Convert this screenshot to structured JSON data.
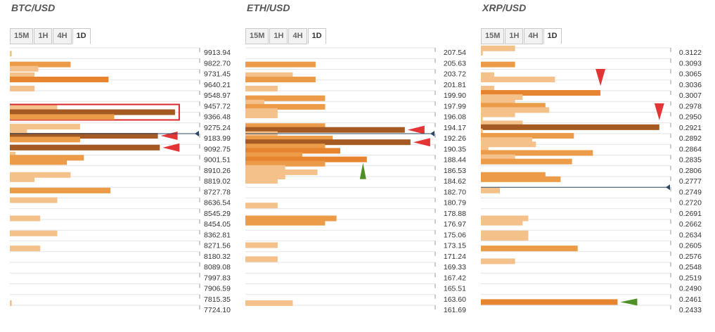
{
  "colors": {
    "light": "#f5c18a",
    "mid": "#ec9b48",
    "dark": "#e6842f",
    "strongest": "#a55a23",
    "grid": "#e3e3e3",
    "label": "#333333",
    "price_marker": "#2c4766",
    "arrow_red": "#e33535",
    "arrow_green": "#4e8f26",
    "highlight_box": "#d9272e"
  },
  "timeframes": [
    "15M",
    "1H",
    "4H",
    "1D"
  ],
  "active_timeframe": "1D",
  "chart_data": [
    {
      "type": "bar",
      "orientation": "horizontal",
      "title": "BTC/USD",
      "price_levels": [
        "9913.94",
        "9822.70",
        "9731.45",
        "9640.21",
        "9548.97",
        "9457.72",
        "9366.48",
        "9275.24",
        "9183.99",
        "9092.75",
        "9001.51",
        "8910.26",
        "8819.02",
        "8727.78",
        "8636.54",
        "8545.29",
        "8454.05",
        "8362.81",
        "8271.56",
        "8180.32",
        "8089.08",
        "7997.83",
        "7906.59",
        "7815.35",
        "7724.10"
      ],
      "current_price_position": 8.0,
      "max_value": 10,
      "bars": [
        {
          "y": 0.55,
          "value": 0.1,
          "tone": "light"
        },
        {
          "y": 1.55,
          "value": 3.2,
          "tone": "mid"
        },
        {
          "y": 1.95,
          "value": 1.5,
          "tone": "light"
        },
        {
          "y": 2.55,
          "value": 1.3,
          "tone": "light"
        },
        {
          "y": 2.95,
          "value": 5.2,
          "tone": "dark"
        },
        {
          "y": 3.8,
          "value": 1.3,
          "tone": "light"
        },
        {
          "y": 5.5,
          "value": 2.5,
          "tone": "light"
        },
        {
          "y": 6.0,
          "value": 8.7,
          "tone": "strongest",
          "highlight": true
        },
        {
          "y": 6.45,
          "value": 5.5,
          "tone": "mid"
        },
        {
          "y": 7.35,
          "value": 3.7,
          "tone": "light"
        },
        {
          "y": 7.75,
          "value": 0.9,
          "tone": "light"
        },
        {
          "y": 8.2,
          "value": 7.8,
          "tone": "strongest",
          "arrow": "red"
        },
        {
          "y": 8.55,
          "value": 3.7,
          "tone": "mid"
        },
        {
          "y": 9.3,
          "value": 7.9,
          "tone": "strongest",
          "arrow": "red"
        },
        {
          "y": 9.95,
          "value": 0.3,
          "tone": "light"
        },
        {
          "y": 10.25,
          "value": 3.9,
          "tone": "mid"
        },
        {
          "y": 10.65,
          "value": 3.0,
          "tone": "mid"
        },
        {
          "y": 11.85,
          "value": 3.2,
          "tone": "light"
        },
        {
          "y": 12.25,
          "value": 1.3,
          "tone": "light"
        },
        {
          "y": 13.3,
          "value": 5.3,
          "tone": "mid"
        },
        {
          "y": 14.2,
          "value": 2.5,
          "tone": "light"
        },
        {
          "y": 15.9,
          "value": 1.6,
          "tone": "light"
        },
        {
          "y": 17.3,
          "value": 2.5,
          "tone": "light"
        },
        {
          "y": 18.7,
          "value": 1.6,
          "tone": "light"
        },
        {
          "y": 23.8,
          "value": 0.1,
          "tone": "light"
        }
      ]
    },
    {
      "type": "bar",
      "orientation": "horizontal",
      "title": "ETH/USD",
      "price_levels": [
        "207.54",
        "205.63",
        "203.72",
        "201.81",
        "199.90",
        "197.99",
        "196.08",
        "194.17",
        "192.26",
        "190.35",
        "188.44",
        "186.53",
        "184.62",
        "182.70",
        "180.79",
        "178.88",
        "176.97",
        "175.06",
        "173.15",
        "171.24",
        "169.33",
        "167.42",
        "165.51",
        "163.60",
        "161.69"
      ],
      "current_price_position": 8.0,
      "max_value": 10,
      "bars": [
        {
          "y": 1.55,
          "value": 3.7,
          "tone": "mid"
        },
        {
          "y": 2.55,
          "value": 2.5,
          "tone": "light"
        },
        {
          "y": 2.95,
          "value": 3.7,
          "tone": "mid"
        },
        {
          "y": 3.8,
          "value": 1.7,
          "tone": "light"
        },
        {
          "y": 4.7,
          "value": 4.2,
          "tone": "mid"
        },
        {
          "y": 5.1,
          "value": 1.0,
          "tone": "light"
        },
        {
          "y": 5.5,
          "value": 4.2,
          "tone": "mid"
        },
        {
          "y": 5.9,
          "value": 1.7,
          "tone": "light"
        },
        {
          "y": 6.3,
          "value": 1.7,
          "tone": "light"
        },
        {
          "y": 7.3,
          "value": 4.2,
          "tone": "mid"
        },
        {
          "y": 7.65,
          "value": 8.4,
          "tone": "strongest",
          "arrow": "red"
        },
        {
          "y": 8.05,
          "value": 1.7,
          "tone": "light"
        },
        {
          "y": 8.45,
          "value": 4.6,
          "tone": "mid"
        },
        {
          "y": 8.8,
          "value": 8.7,
          "tone": "strongest",
          "arrow": "red"
        },
        {
          "y": 9.2,
          "value": 4.2,
          "tone": "mid"
        },
        {
          "y": 9.6,
          "value": 5.0,
          "tone": "dark"
        },
        {
          "y": 10.0,
          "value": 3.0,
          "tone": "mid"
        },
        {
          "y": 10.4,
          "value": 6.4,
          "tone": "dark",
          "arrow": "green"
        },
        {
          "y": 10.8,
          "value": 4.2,
          "tone": "mid"
        },
        {
          "y": 11.2,
          "value": 2.1,
          "tone": "light"
        },
        {
          "y": 11.6,
          "value": 3.8,
          "tone": "light"
        },
        {
          "y": 12.0,
          "value": 2.1,
          "tone": "light"
        },
        {
          "y": 12.4,
          "value": 1.7,
          "tone": "light"
        },
        {
          "y": 14.7,
          "value": 1.7,
          "tone": "light"
        },
        {
          "y": 15.9,
          "value": 4.8,
          "tone": "mid"
        },
        {
          "y": 16.3,
          "value": 4.2,
          "tone": "mid"
        },
        {
          "y": 18.4,
          "value": 1.7,
          "tone": "light"
        },
        {
          "y": 19.7,
          "value": 1.7,
          "tone": "light"
        },
        {
          "y": 23.8,
          "value": 2.5,
          "tone": "light"
        }
      ]
    },
    {
      "type": "bar",
      "orientation": "horizontal",
      "title": "XRP/USD",
      "price_levels": [
        "0.3122",
        "0.3093",
        "0.3065",
        "0.3036",
        "0.3007",
        "0.2978",
        "0.2950",
        "0.2921",
        "0.2892",
        "0.2864",
        "0.2835",
        "0.2806",
        "0.2777",
        "0.2749",
        "0.2720",
        "0.2691",
        "0.2662",
        "0.2634",
        "0.2605",
        "0.2576",
        "0.2548",
        "0.2519",
        "0.2490",
        "0.2461",
        "0.2433"
      ],
      "current_price_position": 13.0,
      "max_value": 10,
      "bars": [
        {
          "y": 0.05,
          "value": 1.8,
          "tone": "light"
        },
        {
          "y": 0.45,
          "value": 0.1,
          "tone": "light"
        },
        {
          "y": 1.55,
          "value": 1.8,
          "tone": "mid"
        },
        {
          "y": 2.55,
          "value": 0.7,
          "tone": "light"
        },
        {
          "y": 2.95,
          "value": 3.9,
          "tone": "light"
        },
        {
          "y": 3.8,
          "value": 0.7,
          "tone": "light"
        },
        {
          "y": 4.2,
          "value": 6.3,
          "tone": "dark",
          "arrow": "red"
        },
        {
          "y": 4.6,
          "value": 2.2,
          "tone": "light"
        },
        {
          "y": 5.0,
          "value": 1.8,
          "tone": "light"
        },
        {
          "y": 5.4,
          "value": 3.4,
          "tone": "mid"
        },
        {
          "y": 5.8,
          "value": 3.6,
          "tone": "light"
        },
        {
          "y": 6.2,
          "value": 1.8,
          "tone": "light"
        },
        {
          "y": 6.6,
          "value": 0.1,
          "tone": "light"
        },
        {
          "y": 7.05,
          "value": 2.2,
          "tone": "light"
        },
        {
          "y": 7.4,
          "value": 9.4,
          "tone": "strongest",
          "arrow": "red"
        },
        {
          "y": 7.8,
          "value": 0.1,
          "tone": "light"
        },
        {
          "y": 8.2,
          "value": 4.9,
          "tone": "mid"
        },
        {
          "y": 8.6,
          "value": 2.7,
          "tone": "light"
        },
        {
          "y": 9.0,
          "value": 2.9,
          "tone": "light"
        },
        {
          "y": 9.4,
          "value": 0.4,
          "tone": "light"
        },
        {
          "y": 9.8,
          "value": 5.9,
          "tone": "mid"
        },
        {
          "y": 10.2,
          "value": 1.8,
          "tone": "light"
        },
        {
          "y": 10.6,
          "value": 4.8,
          "tone": "mid"
        },
        {
          "y": 11.85,
          "value": 3.4,
          "tone": "mid"
        },
        {
          "y": 12.25,
          "value": 4.2,
          "tone": "mid"
        },
        {
          "y": 13.3,
          "value": 1.0,
          "tone": "light"
        },
        {
          "y": 15.9,
          "value": 2.5,
          "tone": "light"
        },
        {
          "y": 16.3,
          "value": 2.2,
          "tone": "light"
        },
        {
          "y": 17.3,
          "value": 2.5,
          "tone": "light"
        },
        {
          "y": 17.7,
          "value": 2.5,
          "tone": "light"
        },
        {
          "y": 18.7,
          "value": 5.1,
          "tone": "mid"
        },
        {
          "y": 19.9,
          "value": 1.8,
          "tone": "light"
        },
        {
          "y": 23.7,
          "value": 7.2,
          "tone": "dark",
          "arrow": "green"
        }
      ]
    }
  ]
}
